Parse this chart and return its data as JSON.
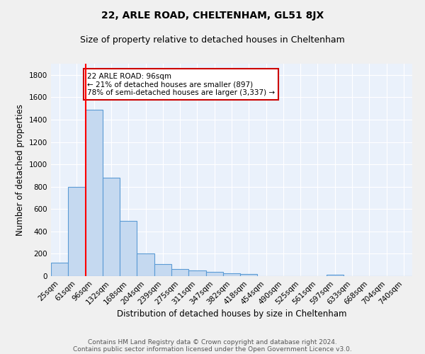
{
  "title": "22, ARLE ROAD, CHELTENHAM, GL51 8JX",
  "subtitle": "Size of property relative to detached houses in Cheltenham",
  "xlabel": "Distribution of detached houses by size in Cheltenham",
  "ylabel": "Number of detached properties",
  "categories": [
    "25sqm",
    "61sqm",
    "96sqm",
    "132sqm",
    "168sqm",
    "204sqm",
    "239sqm",
    "275sqm",
    "311sqm",
    "347sqm",
    "382sqm",
    "418sqm",
    "454sqm",
    "490sqm",
    "525sqm",
    "561sqm",
    "597sqm",
    "633sqm",
    "668sqm",
    "704sqm",
    "740sqm"
  ],
  "values": [
    120,
    800,
    1490,
    880,
    495,
    205,
    105,
    65,
    48,
    35,
    28,
    20,
    0,
    0,
    0,
    0,
    13,
    0,
    0,
    0,
    0
  ],
  "bar_color": "#c5d9f0",
  "bar_edge_color": "#5b9bd5",
  "red_line_index": 2,
  "annotation_text": "22 ARLE ROAD: 96sqm\n← 21% of detached houses are smaller (897)\n78% of semi-detached houses are larger (3,337) →",
  "annotation_box_color": "#ffffff",
  "annotation_box_edge_color": "#cc0000",
  "ylim": [
    0,
    1900
  ],
  "yticks": [
    0,
    200,
    400,
    600,
    800,
    1000,
    1200,
    1400,
    1600,
    1800
  ],
  "background_color": "#eaf1fb",
  "grid_color": "#ffffff",
  "footer_line1": "Contains HM Land Registry data © Crown copyright and database right 2024.",
  "footer_line2": "Contains public sector information licensed under the Open Government Licence v3.0.",
  "title_fontsize": 10,
  "subtitle_fontsize": 9,
  "axis_label_fontsize": 8.5,
  "tick_fontsize": 7.5,
  "annotation_fontsize": 7.5,
  "footer_fontsize": 6.5
}
